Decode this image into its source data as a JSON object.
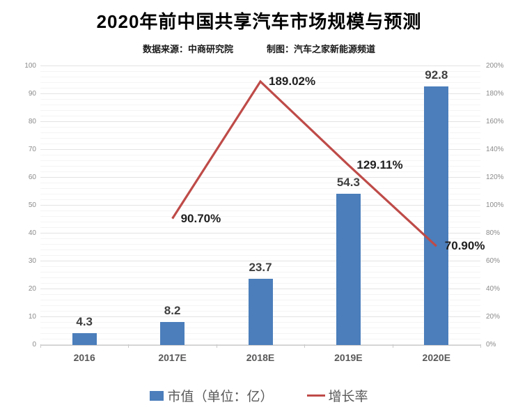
{
  "title": "2020年前中国共享汽车市场规模与预测",
  "subtitle": {
    "source": "数据来源：中商研究院",
    "credit": "制图：汽车之家新能源频道"
  },
  "legend": {
    "bar_label": "市值（单位：亿）",
    "line_label": "增长率"
  },
  "colors": {
    "bar": "#4B7EBB",
    "line": "#BE4B48",
    "major_gridline": "#e3e3e3",
    "minor_gridline": "#f4f4f4",
    "axis_line": "#c9c9c9"
  },
  "chart_data": {
    "type": "bar",
    "subtype": "bar-line-combo",
    "categories": [
      "2016",
      "2017E",
      "2018E",
      "2019E",
      "2020E"
    ],
    "series": [
      {
        "name": "市值（单位：亿）",
        "type": "bar",
        "axis": "left",
        "color": "#4B7EBB",
        "values": [
          4.3,
          8.2,
          23.7,
          54.3,
          92.8
        ],
        "data_labels": [
          "4.3",
          "8.2",
          "23.7",
          "54.3",
          "92.8"
        ]
      },
      {
        "name": "增长率",
        "type": "line",
        "axis": "right",
        "color": "#BE4B48",
        "values": [
          null,
          90.7,
          189.02,
          129.11,
          70.9
        ],
        "data_labels": [
          null,
          "90.70%",
          "189.02%",
          "129.11%",
          "70.90%"
        ]
      }
    ],
    "left_axis": {
      "min": 0,
      "max": 100,
      "step": 10,
      "ticks": [
        "100",
        "90",
        "80",
        "70",
        "60",
        "50",
        "40",
        "30",
        "20",
        "10",
        "0"
      ]
    },
    "right_axis": {
      "min": 0,
      "max": 200,
      "step": 20,
      "ticks": [
        "200%",
        "180%",
        "160%",
        "140%",
        "120%",
        "100%",
        "80%",
        "60%",
        "40%",
        "20%",
        "0%"
      ]
    },
    "grid": {
      "major": true,
      "minor": true,
      "minor_step": 2
    },
    "legend_position": "bottom"
  }
}
